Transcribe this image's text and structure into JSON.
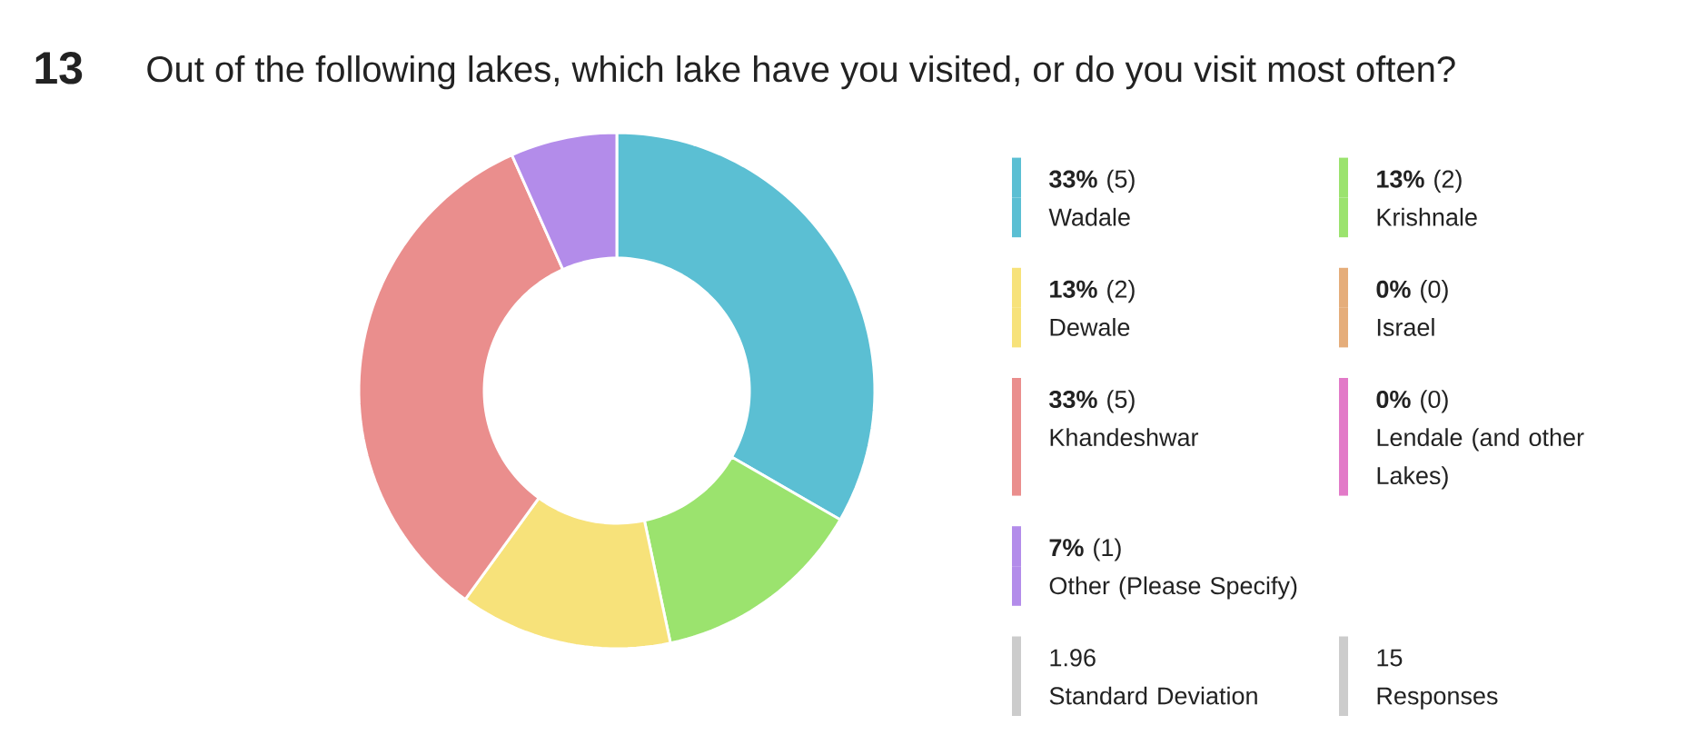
{
  "chart_data": {
    "type": "donut",
    "title": "Out of the following lakes, which lake have you visited, or do you visit most often?",
    "categories": [
      "Wadale",
      "Krishnale",
      "Dewale",
      "Israel",
      "Khandeshwar",
      "Lendale (and other Lakes)",
      "Other (Please Specify)"
    ],
    "values": [
      5,
      2,
      2,
      0,
      5,
      0,
      1
    ],
    "value_labels": [
      "**33%** (5)",
      "**13%** (2)",
      "**13%** (2)",
      "**0%** (0)",
      "**33%** (5)",
      "**0%** (0)",
      "**7%** (1)"
    ],
    "colors": [
      "#5bbfd3",
      "#9be36e",
      "#f7e27a",
      "#e5ad7a",
      "#ea8e8d",
      "#e27ac8",
      "#b38cea"
    ],
    "legend": "right",
    "annotations": [
      "13",
      "1.96",
      "Standard Deviation",
      "15",
      "Responses"
    ]
  }
}
